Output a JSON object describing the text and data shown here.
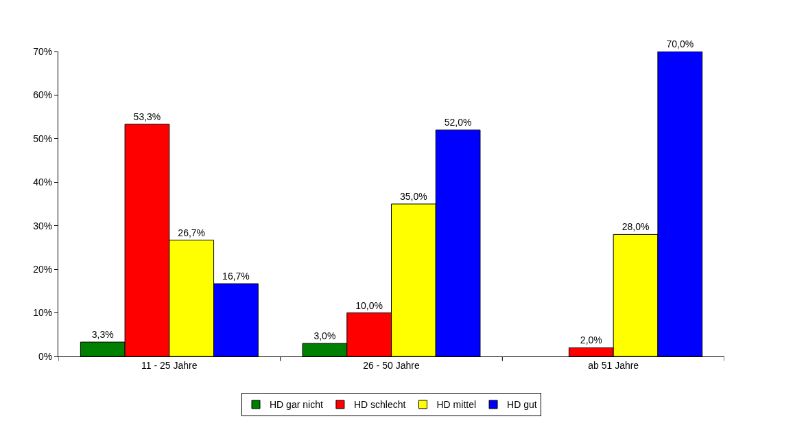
{
  "chart_data": {
    "type": "bar",
    "categories": [
      "11 - 25 Jahre",
      "26 - 50 Jahre",
      "ab 51 Jahre"
    ],
    "series": [
      {
        "name": "HD gar nicht",
        "color": "#008000",
        "values": [
          3.3,
          3.0,
          null
        ],
        "value_labels": [
          "3,3%",
          "3,0%",
          null
        ]
      },
      {
        "name": "HD schlecht",
        "color": "#ff0000",
        "values": [
          53.3,
          10.0,
          2.0
        ],
        "value_labels": [
          "53,3%",
          "10,0%",
          "2,0%"
        ]
      },
      {
        "name": "HD mittel",
        "color": "#ffff00",
        "values": [
          26.7,
          35.0,
          28.0
        ],
        "value_labels": [
          "26,7%",
          "35,0%",
          "28,0%"
        ]
      },
      {
        "name": "HD gut",
        "color": "#0000ff",
        "values": [
          16.7,
          52.0,
          70.0
        ],
        "value_labels": [
          "16,7%",
          "52,0%",
          "70,0%"
        ]
      }
    ],
    "ylim": [
      0,
      70
    ],
    "yticks": [
      {
        "value": 0,
        "label": "0%"
      },
      {
        "value": 10,
        "label": "10%"
      },
      {
        "value": 20,
        "label": "20%"
      },
      {
        "value": 30,
        "label": "30%"
      },
      {
        "value": 40,
        "label": "40%"
      },
      {
        "value": 50,
        "label": "50%"
      },
      {
        "value": 60,
        "label": "60%"
      },
      {
        "value": 70,
        "label": "70%"
      }
    ],
    "grid": false,
    "legend": "bottom"
  }
}
